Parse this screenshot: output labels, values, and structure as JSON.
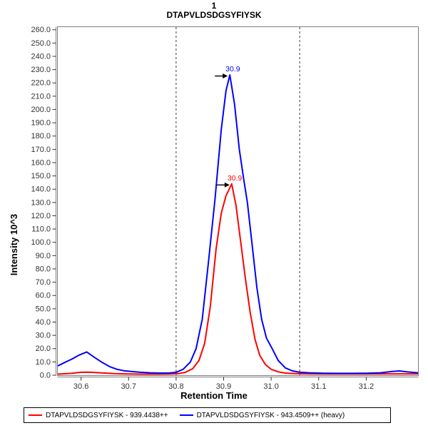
{
  "title": {
    "replicate": "1",
    "peptide": "DTAPVLDSDGSYFIYSK"
  },
  "axes": {
    "x": {
      "label": "Retention Time"
    },
    "y": {
      "label": "Intensity 10^3"
    }
  },
  "legend": {
    "items": [
      {
        "label": "DTAPVLDSDGSYFIYSK - 939.4438++",
        "color": "#ff0000"
      },
      {
        "label": "DTAPVLDSDGSYFIYSK - 943.4509++ (heavy)",
        "color": "#0000ff"
      }
    ]
  },
  "colors": {
    "background": "#ffffff",
    "plot_border": "#808080",
    "tick_label": "#333333",
    "boundary_line": "#3a3a3a",
    "annotation_arrow": "#000000"
  },
  "chart_data": {
    "type": "line",
    "title": "1 DTAPVLDSDGSYFIYSK",
    "xlabel": "Retention Time",
    "ylabel": "Intensity 10^3",
    "xlim": [
      30.551,
      31.309
    ],
    "ylim": [
      0,
      262
    ],
    "xticks": [
      30.6,
      30.7,
      30.8,
      30.9,
      31.0,
      31.1,
      31.2
    ],
    "ytick_step": 10,
    "ytick_max": 260,
    "integration_boundaries": [
      30.8,
      31.06
    ],
    "series": [
      {
        "name": "DTAPVLDSDGSYFIYSK - 939.4438++",
        "id": "light",
        "color": "#ff0000",
        "peak_annotation": "30.9",
        "points": [
          [
            30.551,
            0.8
          ],
          [
            30.58,
            1.4
          ],
          [
            30.6,
            2.2
          ],
          [
            30.615,
            2.3
          ],
          [
            30.63,
            2.0
          ],
          [
            30.65,
            1.6
          ],
          [
            30.67,
            1.2
          ],
          [
            30.7,
            0.9
          ],
          [
            30.73,
            0.8
          ],
          [
            30.76,
            0.8
          ],
          [
            30.79,
            0.9
          ],
          [
            30.805,
            1.2
          ],
          [
            30.82,
            2.2
          ],
          [
            30.835,
            5
          ],
          [
            30.848,
            11
          ],
          [
            30.86,
            24
          ],
          [
            30.872,
            52
          ],
          [
            30.884,
            95
          ],
          [
            30.895,
            122
          ],
          [
            30.905,
            135
          ],
          [
            30.917,
            144
          ],
          [
            30.926,
            128
          ],
          [
            30.936,
            100
          ],
          [
            30.946,
            72
          ],
          [
            30.956,
            47
          ],
          [
            30.966,
            27
          ],
          [
            30.976,
            15
          ],
          [
            30.988,
            8
          ],
          [
            31.0,
            4.5
          ],
          [
            31.015,
            2.5
          ],
          [
            31.03,
            1.6
          ],
          [
            31.05,
            1.2
          ],
          [
            31.08,
            1.0
          ],
          [
            31.12,
            0.9
          ],
          [
            31.16,
            0.9
          ],
          [
            31.2,
            0.9
          ],
          [
            31.24,
            1.0
          ],
          [
            31.28,
            1.0
          ],
          [
            31.309,
            1.0
          ]
        ]
      },
      {
        "name": "DTAPVLDSDGSYFIYSK - 943.4509++ (heavy)",
        "id": "heavy",
        "color": "#0000ff",
        "peak_annotation": "30.9",
        "points": [
          [
            30.551,
            7
          ],
          [
            30.565,
            9.5
          ],
          [
            30.58,
            12
          ],
          [
            30.595,
            15
          ],
          [
            30.612,
            17.5
          ],
          [
            30.628,
            13.5
          ],
          [
            30.645,
            9.5
          ],
          [
            30.66,
            6.5
          ],
          [
            30.675,
            4.5
          ],
          [
            30.69,
            3.4
          ],
          [
            30.705,
            2.8
          ],
          [
            30.725,
            2.2
          ],
          [
            30.745,
            1.8
          ],
          [
            30.765,
            1.6
          ],
          [
            30.785,
            1.6
          ],
          [
            30.8,
            2.2
          ],
          [
            30.815,
            4.5
          ],
          [
            30.83,
            10
          ],
          [
            30.842,
            20
          ],
          [
            30.855,
            42
          ],
          [
            30.868,
            85
          ],
          [
            30.882,
            133
          ],
          [
            30.895,
            185
          ],
          [
            30.905,
            214
          ],
          [
            30.913,
            226
          ],
          [
            30.923,
            204
          ],
          [
            30.933,
            170
          ],
          [
            30.942,
            148
          ],
          [
            30.95,
            130
          ],
          [
            30.96,
            98
          ],
          [
            30.97,
            66
          ],
          [
            30.98,
            42
          ],
          [
            30.99,
            28
          ],
          [
            31.002,
            20
          ],
          [
            31.015,
            11
          ],
          [
            31.03,
            5.5
          ],
          [
            31.045,
            3.2
          ],
          [
            31.06,
            2.2
          ],
          [
            31.08,
            1.8
          ],
          [
            31.11,
            1.5
          ],
          [
            31.14,
            1.4
          ],
          [
            31.17,
            1.4
          ],
          [
            31.2,
            1.5
          ],
          [
            31.23,
            1.8
          ],
          [
            31.255,
            2.8
          ],
          [
            31.27,
            3.2
          ],
          [
            31.285,
            2.5
          ],
          [
            31.309,
            1.8
          ]
        ]
      }
    ]
  }
}
